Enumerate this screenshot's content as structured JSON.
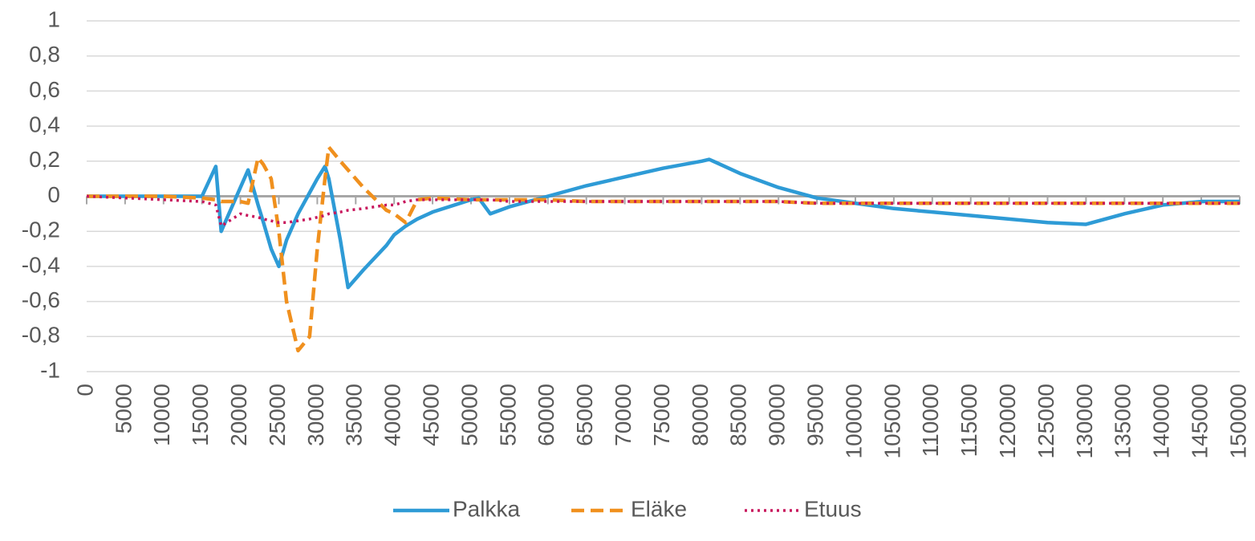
{
  "chart_data": {
    "type": "line",
    "x": [
      0,
      5000,
      10000,
      15000,
      16800,
      17500,
      20000,
      21000,
      22300,
      23000,
      24000,
      25000,
      26000,
      27500,
      29000,
      30000,
      31000,
      31500,
      33000,
      34000,
      36000,
      39000,
      40000,
      41500,
      43000,
      45000,
      50000,
      51000,
      52500,
      55000,
      60000,
      65000,
      70000,
      75000,
      80000,
      81000,
      85000,
      90000,
      95000,
      100000,
      105000,
      110000,
      115000,
      120000,
      125000,
      130000,
      135000,
      140000,
      145000,
      150000
    ],
    "series": [
      {
        "name": "Palkka",
        "color": "#2e9bd6",
        "dash": "solid",
        "values": [
          0,
          0,
          0,
          0,
          0.17,
          -0.2,
          0.05,
          0.15,
          -0.05,
          -0.15,
          -0.3,
          -0.4,
          -0.25,
          -0.1,
          0.02,
          0.1,
          0.17,
          0.1,
          -0.25,
          -0.52,
          -0.42,
          -0.28,
          -0.22,
          -0.17,
          -0.13,
          -0.09,
          -0.02,
          -0.01,
          -0.1,
          -0.06,
          0,
          0.06,
          0.11,
          0.16,
          0.2,
          0.21,
          0.13,
          0.05,
          -0.01,
          -0.04,
          -0.07,
          -0.09,
          -0.11,
          -0.13,
          -0.15,
          -0.16,
          -0.1,
          -0.05,
          -0.03,
          -0.03
        ]
      },
      {
        "name": "Eläke",
        "color": "#f0901e",
        "dash": "dashed",
        "values": [
          0,
          0,
          0,
          -0.01,
          -0.02,
          -0.03,
          -0.03,
          -0.04,
          0.22,
          0.18,
          0.1,
          -0.2,
          -0.6,
          -0.88,
          -0.8,
          -0.3,
          0.1,
          0.28,
          0.2,
          0.15,
          0.05,
          -0.08,
          -0.1,
          -0.15,
          -0.02,
          -0.01,
          -0.02,
          -0.02,
          -0.02,
          -0.02,
          -0.02,
          -0.03,
          -0.03,
          -0.03,
          -0.03,
          -0.03,
          -0.03,
          -0.03,
          -0.04,
          -0.04,
          -0.04,
          -0.04,
          -0.04,
          -0.04,
          -0.04,
          -0.04,
          -0.04,
          -0.04,
          -0.04,
          -0.04
        ]
      },
      {
        "name": "Etuus",
        "color": "#c8175d",
        "dash": "dotted",
        "values": [
          0,
          -0.01,
          -0.02,
          -0.03,
          -0.05,
          -0.17,
          -0.1,
          -0.11,
          -0.12,
          -0.13,
          -0.14,
          -0.15,
          -0.15,
          -0.14,
          -0.13,
          -0.12,
          -0.11,
          -0.1,
          -0.09,
          -0.08,
          -0.07,
          -0.05,
          -0.05,
          -0.03,
          -0.02,
          -0.02,
          -0.02,
          -0.02,
          -0.02,
          -0.03,
          -0.03,
          -0.03,
          -0.03,
          -0.03,
          -0.03,
          -0.03,
          -0.03,
          -0.03,
          -0.04,
          -0.04,
          -0.04,
          -0.04,
          -0.04,
          -0.04,
          -0.04,
          -0.04,
          -0.04,
          -0.04,
          -0.04,
          -0.04
        ]
      }
    ],
    "xlim": [
      0,
      150000
    ],
    "xticks": [
      0,
      5000,
      10000,
      15000,
      20000,
      25000,
      30000,
      35000,
      40000,
      45000,
      50000,
      55000,
      60000,
      65000,
      70000,
      75000,
      80000,
      85000,
      90000,
      95000,
      100000,
      105000,
      110000,
      115000,
      120000,
      125000,
      130000,
      135000,
      140000,
      145000,
      150000
    ],
    "ylim": [
      -1,
      1
    ],
    "yticks": [
      {
        "value": -1,
        "label": "-1"
      },
      {
        "value": -0.8,
        "label": "-0,8"
      },
      {
        "value": -0.6,
        "label": "-0,6"
      },
      {
        "value": -0.4,
        "label": "-0,4"
      },
      {
        "value": -0.2,
        "label": "-0,2"
      },
      0,
      {
        "value": 0.2,
        "label": "0,2"
      },
      {
        "value": 0.4,
        "label": "0,4"
      },
      {
        "value": 0.6,
        "label": "0,6"
      },
      {
        "value": 0.8,
        "label": "0,8"
      },
      1
    ],
    "grid": true,
    "legend": "bottom"
  }
}
